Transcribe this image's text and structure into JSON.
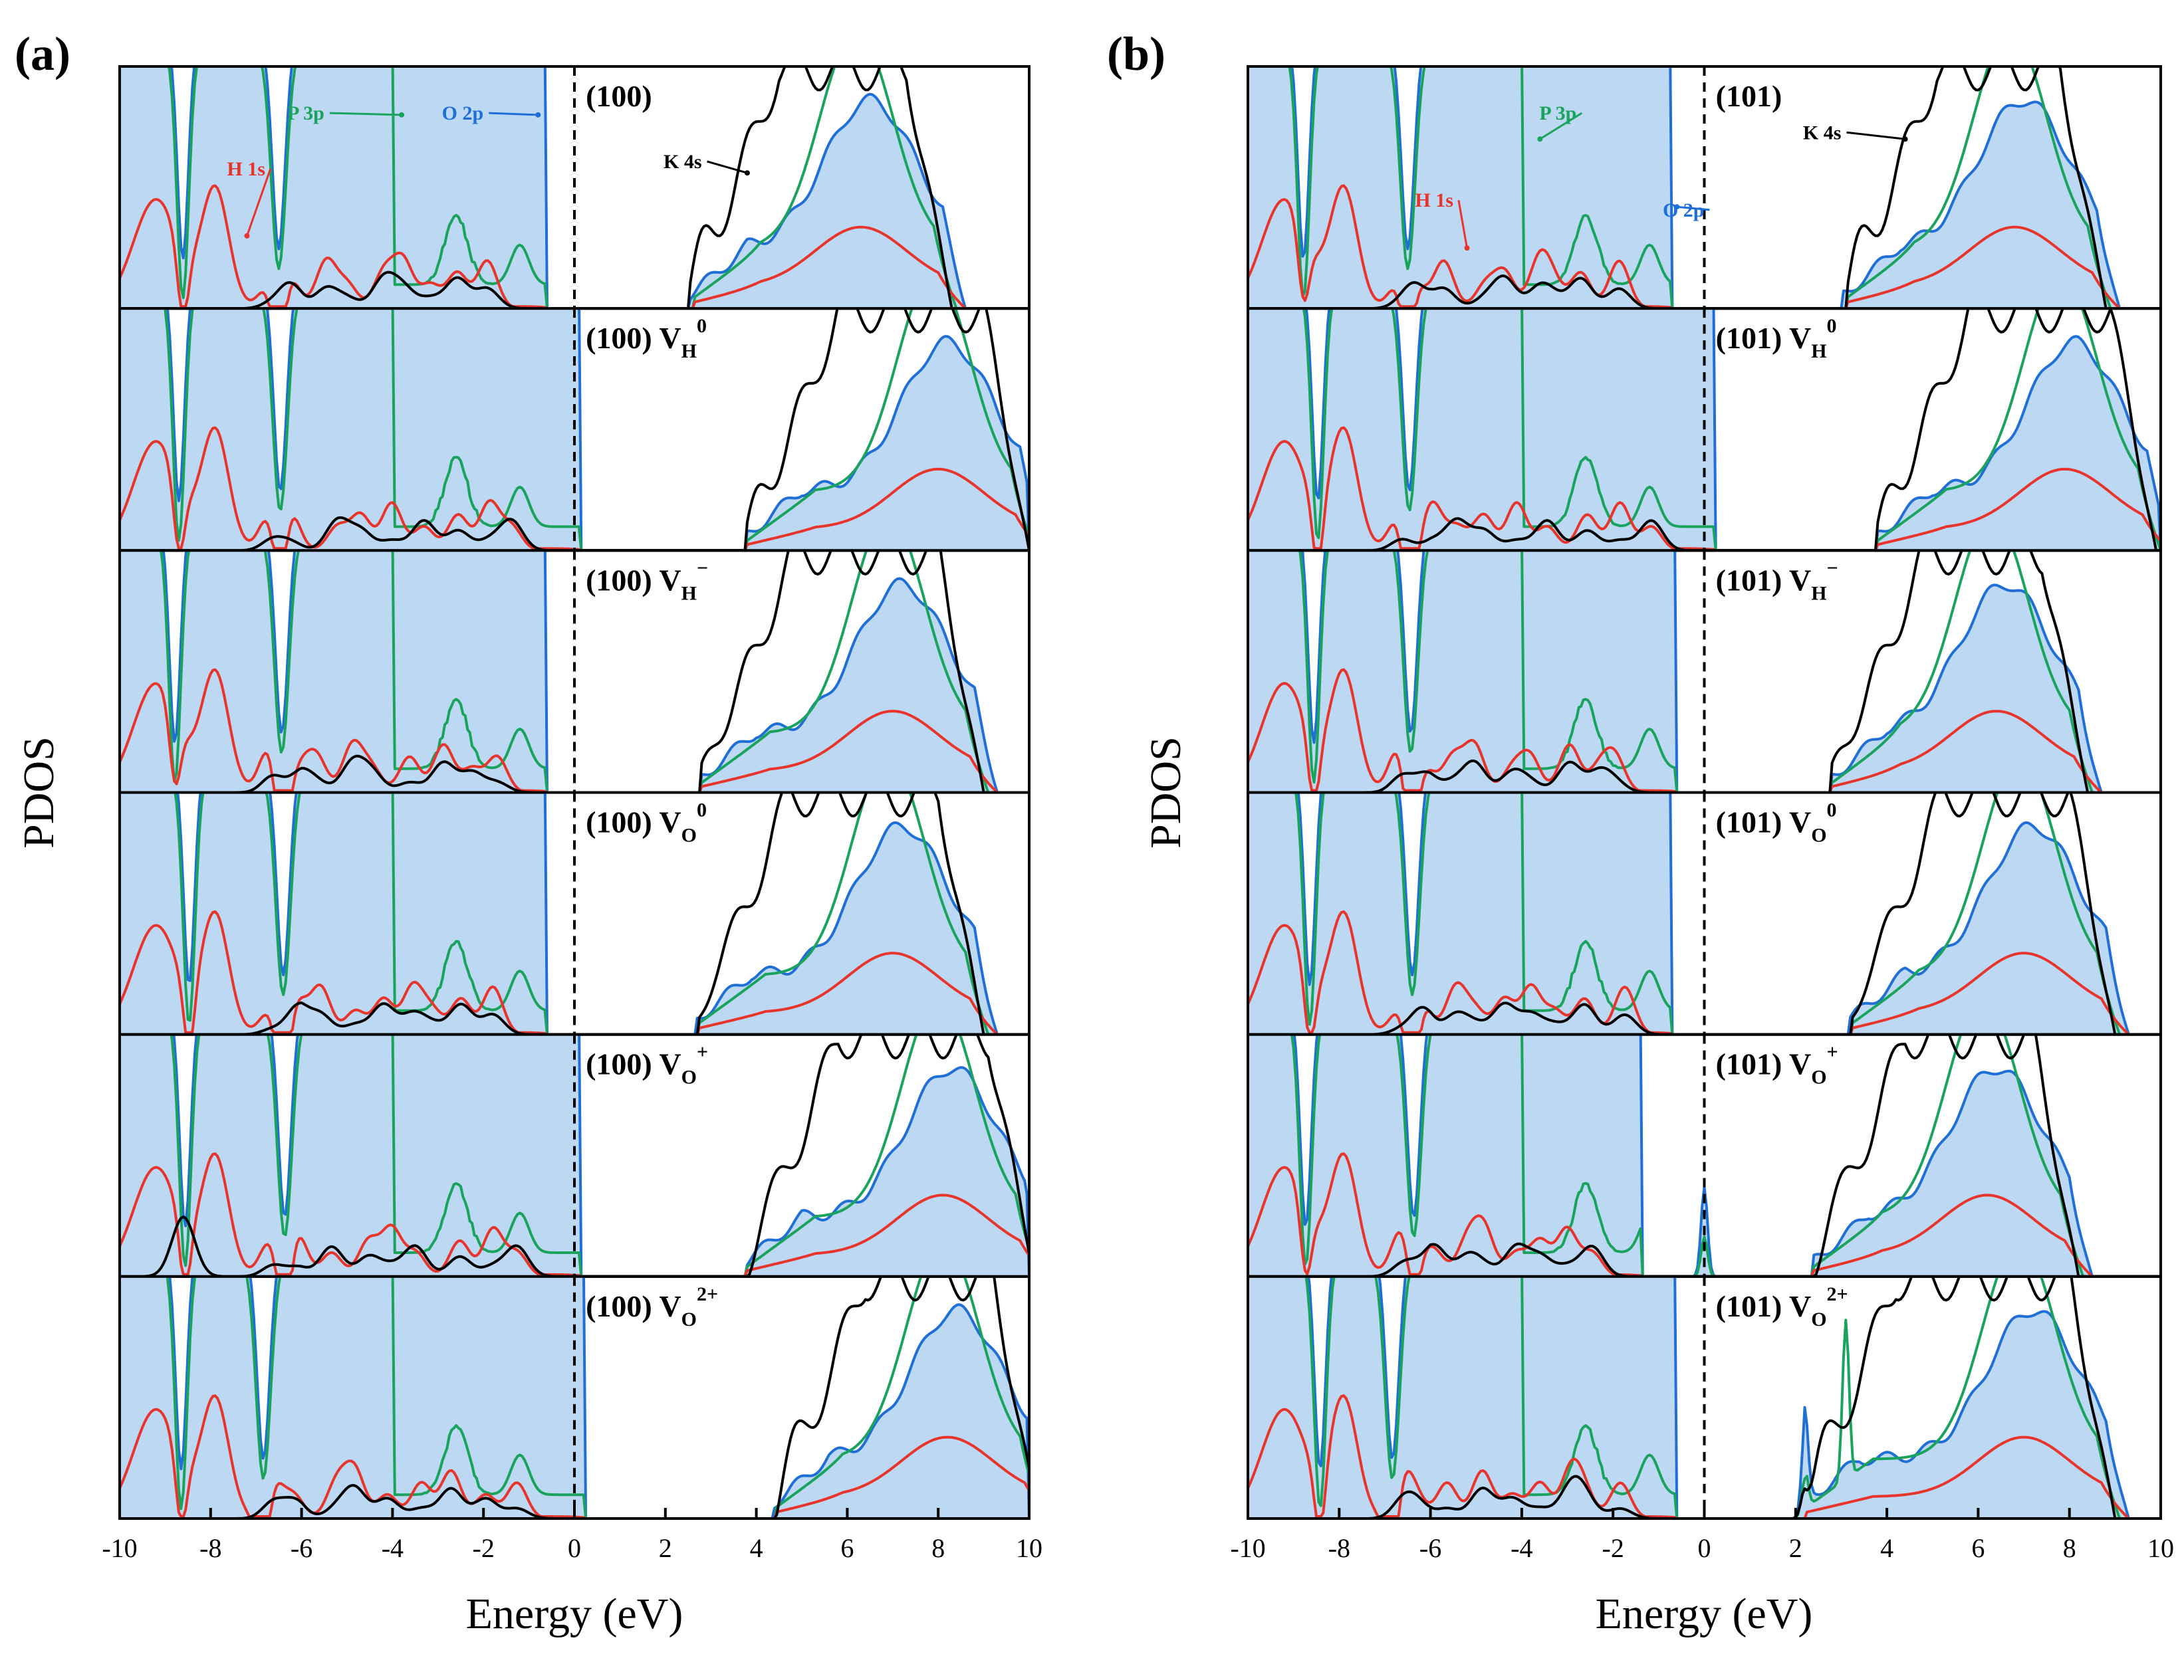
{
  "chart_data": [
    {
      "panel": "(a)",
      "type": "line",
      "title": "",
      "xlabel": "Energy (eV)",
      "ylabel": "PDOS",
      "xlim": [
        -10,
        10
      ],
      "xticks": [
        "-10",
        "-8",
        "-6",
        "-4",
        "-2",
        "0",
        "2",
        "4",
        "6",
        "8",
        "10"
      ],
      "fermi_level": 0,
      "series_legend": [
        {
          "name": "H 1s",
          "color": "#e8342b"
        },
        {
          "name": "P 3p",
          "color": "#1aa35c"
        },
        {
          "name": "O 2p",
          "color": "#1f6fd6"
        },
        {
          "name": "K 4s",
          "color": "#000000"
        }
      ],
      "subplots": [
        {
          "label": "(100)",
          "base": "(100)",
          "sub": "",
          "sup": "",
          "o2p_edges": [
            -0.6,
            2.6
          ],
          "k4s_onset": 2.5,
          "k4s_peak": 6.5,
          "annotations": [
            {
              "text": "P 3p",
              "color": "#1aa35c",
              "at": [
                -5.5,
                0.78
              ],
              "to": [
                -3.8,
                0.8
              ]
            },
            {
              "text": "O 2p",
              "color": "#1f6fd6",
              "at": [
                -2.0,
                0.78
              ],
              "to": [
                -0.8,
                0.8
              ]
            },
            {
              "text": "H 1s",
              "color": "#e8342b",
              "at": [
                -6.8,
                0.55
              ],
              "to": [
                -7.2,
                0.3
              ]
            },
            {
              "text": "K 4s",
              "color": "#000000",
              "at": [
                2.8,
                0.58
              ],
              "to": [
                3.8,
                0.56
              ]
            }
          ]
        },
        {
          "label": "(100) VH0",
          "base": "(100) V",
          "sub": "H",
          "sup": "0",
          "o2p_edges": [
            0.1,
            3.8
          ],
          "k4s_onset": 3.8,
          "k4s_peak": 8.2,
          "annotations": []
        },
        {
          "label": "(100) VH−",
          "base": "(100) V",
          "sub": "H",
          "sup": "−",
          "o2p_edges": [
            -0.6,
            2.8
          ],
          "k4s_onset": 2.8,
          "k4s_peak": 7.2,
          "annotations": []
        },
        {
          "label": "(100) VO0",
          "base": "(100) V",
          "sub": "O",
          "sup": "0",
          "o2p_edges": [
            -0.6,
            2.7
          ],
          "k4s_onset": 2.7,
          "k4s_peak": 7.2,
          "annotations": []
        },
        {
          "label": "(100) VO+",
          "base": "(100) V",
          "sub": "O",
          "sup": "+",
          "o2p_edges": [
            0.1,
            3.8
          ],
          "k4s_onset": 3.8,
          "k4s_peak": 8.3,
          "annotations": []
        },
        {
          "label": "(100) VO2+",
          "base": "(100) V",
          "sub": "O",
          "sup": "2+",
          "o2p_edges": [
            0.2,
            4.4
          ],
          "k4s_onset": 4.4,
          "k4s_peak": 8.4,
          "annotations": []
        }
      ]
    },
    {
      "panel": "(b)",
      "type": "line",
      "title": "",
      "xlabel": "Energy (eV)",
      "ylabel": "PDOS",
      "xlim": [
        -10,
        10
      ],
      "xticks": [
        "-10",
        "-8",
        "-6",
        "-4",
        "-2",
        "0",
        "2",
        "4",
        "6",
        "8",
        "10"
      ],
      "fermi_level": 0,
      "series_legend": [
        {
          "name": "H 1s",
          "color": "#e8342b"
        },
        {
          "name": "P 3p",
          "color": "#1aa35c"
        },
        {
          "name": "O 2p",
          "color": "#1f6fd6"
        },
        {
          "name": "K 4s",
          "color": "#000000"
        }
      ],
      "subplots": [
        {
          "label": "(101)",
          "base": "(101)",
          "sub": "",
          "sup": "",
          "o2p_edges": [
            -0.7,
            3.1
          ],
          "k4s_onset": 3.1,
          "k4s_peak": 7.0,
          "annotations": [
            {
              "text": "P 3p",
              "color": "#1aa35c",
              "at": [
                -2.8,
                0.78
              ],
              "to": [
                -3.6,
                0.7
              ]
            },
            {
              "text": "H 1s",
              "color": "#e8342b",
              "at": [
                -5.5,
                0.42
              ],
              "to": [
                -5.2,
                0.25
              ]
            },
            {
              "text": "O 2p",
              "color": "#1f6fd6",
              "at": [
                0.0,
                0.38
              ],
              "to": [
                -0.6,
                0.42
              ]
            },
            {
              "text": "K 4s",
              "color": "#000000",
              "at": [
                3.0,
                0.7
              ],
              "to": [
                4.4,
                0.7
              ]
            }
          ]
        },
        {
          "label": "(101) VH0",
          "base": "(101) V",
          "sub": "H",
          "sup": "0",
          "o2p_edges": [
            0.2,
            3.8
          ],
          "k4s_onset": 3.8,
          "k4s_peak": 8.1,
          "annotations": []
        },
        {
          "label": "(101) VH−",
          "base": "(101) V",
          "sub": "H",
          "sup": "−",
          "o2p_edges": [
            -0.6,
            2.8
          ],
          "k4s_onset": 2.8,
          "k4s_peak": 6.6,
          "annotations": []
        },
        {
          "label": "(101) VO0",
          "base": "(101) V",
          "sub": "O",
          "sup": "0",
          "o2p_edges": [
            -0.7,
            3.2
          ],
          "k4s_onset": 3.2,
          "k4s_peak": 7.2,
          "annotations": []
        },
        {
          "label": "(101) VO+",
          "base": "(101) V",
          "sub": "O",
          "sup": "+",
          "o2p_edges": [
            -1.4,
            2.4
          ],
          "k4s_onset": 2.4,
          "k4s_peak": 6.4,
          "gap_state": 0.0,
          "annotations": []
        },
        {
          "label": "(101) VO2+",
          "base": "(101) V",
          "sub": "O",
          "sup": "2+",
          "o2p_edges": [
            -0.6,
            2.2
          ],
          "k4s_onset": 2.2,
          "k4s_peak": 7.2,
          "gap_state": 2.2,
          "gap_state_p3p": 3.1,
          "annotations": []
        }
      ]
    }
  ],
  "colors": {
    "h1s": "#e8342b",
    "p3p": "#1aa35c",
    "o2p": "#1f6fd6",
    "o2p_fill": "#bcd8f2",
    "k4s": "#000000"
  }
}
